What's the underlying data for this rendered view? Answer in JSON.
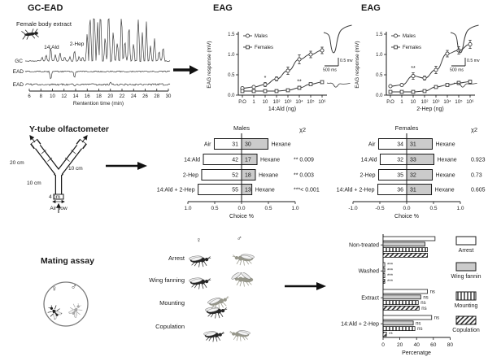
{
  "gc_ead": {
    "title": "GC-EAD",
    "sample_label": "Female body extract",
    "fly_icon": "fly-icon",
    "traces": [
      "GC",
      "EAD",
      "EAD"
    ],
    "peaks": [
      {
        "label": "14:Ald",
        "rt": 9.7
      },
      {
        "label": "2-Hep",
        "rt": 13.8
      }
    ],
    "x_ticks": [
      6,
      8,
      10,
      12,
      14,
      16,
      18,
      20,
      22,
      24,
      26,
      28,
      30
    ],
    "x_label": "Rentention time (min)"
  },
  "ytube": {
    "title": "Y-tube olfactometer",
    "labels": {
      "left_arm": "20 cm",
      "right_arm": "10 cm",
      "stem": "10 cm",
      "base": "4 cm",
      "airflow": "Air flow"
    }
  },
  "mating": {
    "title": "Mating assay",
    "female_symbol": "♀",
    "male_symbol": "♂",
    "behaviors": [
      "Arrest",
      "Wing fanning",
      "Mounting",
      "Copulation"
    ]
  },
  "icons": {
    "arrows": [
      "arrow-right-icon",
      "arrow-right-icon",
      "arrow-right-icon"
    ],
    "flies": [
      "fly-top-icon",
      "fly-side-icon"
    ]
  },
  "colors": {
    "ink": "#1a1a1a",
    "bar_gray": "#cbcbcb"
  },
  "chart_data": [
    {
      "id": "eag_14ald",
      "type": "line",
      "title": "EAG",
      "xlabel": "14:Ald (ng)",
      "ylabel": "EAG response (mV)",
      "ylim": [
        0,
        1.5
      ],
      "yticks": [
        "0.0",
        "0.5",
        "1.0",
        "1.5"
      ],
      "x_categories": [
        "P.O",
        "1",
        "10",
        "10²",
        "10³",
        "10⁴",
        "10⁵",
        "10⁶"
      ],
      "legend_position": "top-left",
      "series": [
        {
          "name": "Males",
          "marker": "circle",
          "values": [
            0.17,
            0.2,
            0.26,
            0.4,
            0.6,
            0.88,
            1.0,
            1.1
          ],
          "errors": [
            0.02,
            0.02,
            0.05,
            0.05,
            0.09,
            0.11,
            0.08,
            0.08
          ]
        },
        {
          "name": "Females",
          "marker": "square",
          "values": [
            0.1,
            0.1,
            0.1,
            0.1,
            0.12,
            0.18,
            0.27,
            0.32
          ],
          "errors": [
            0.01,
            0.01,
            0.01,
            0.01,
            0.02,
            0.04,
            0.03,
            0.03
          ]
        }
      ],
      "annotations": [
        {
          "series": 0,
          "x_index": 2,
          "text": "*"
        },
        {
          "series": 1,
          "x_index": 5,
          "text": "**"
        }
      ],
      "inset_scale_time": "500 ms",
      "inset_scale_volt": "0.5 mv"
    },
    {
      "id": "eag_2hep",
      "type": "line",
      "title": "EAG",
      "xlabel": "2-Hep (ng)",
      "ylabel": "EAG response (mV)",
      "ylim": [
        0,
        1.5
      ],
      "yticks": [
        "0.0",
        "0.5",
        "1.0",
        "1.5"
      ],
      "x_categories": [
        "P.O",
        "1",
        "10",
        "10²",
        "10³",
        "10⁴",
        "10⁵",
        "10⁶"
      ],
      "legend_position": "top-left",
      "series": [
        {
          "name": "Males",
          "marker": "circle",
          "values": [
            0.22,
            0.25,
            0.47,
            0.42,
            0.62,
            1.02,
            1.1,
            1.25
          ],
          "errors": [
            0.02,
            0.03,
            0.08,
            0.05,
            0.09,
            0.08,
            0.09,
            0.1
          ]
        },
        {
          "name": "Females",
          "marker": "square",
          "values": [
            0.08,
            0.08,
            0.08,
            0.1,
            0.2,
            0.25,
            0.3,
            0.33
          ],
          "errors": [
            0.01,
            0.01,
            0.01,
            0.02,
            0.03,
            0.03,
            0.04,
            0.04
          ]
        }
      ],
      "annotations": [
        {
          "series": 0,
          "x_index": 2,
          "text": "**"
        }
      ],
      "inset_scale_time": "500 ms",
      "inset_scale_volt": "0.5 mv"
    },
    {
      "id": "choice_males",
      "type": "bar",
      "title": "Males",
      "stat_header": "χ2",
      "xlabel": "Choice %",
      "x_ticks": [
        "1.0",
        "0.5",
        "0.0",
        "0.5",
        "1.0"
      ],
      "right_label": "Hexane",
      "rows": [
        {
          "stimulus": "Air",
          "left_count": 31,
          "right_count": 30,
          "chi2": ""
        },
        {
          "stimulus": "14:Ald",
          "left_count": 42,
          "right_count": 17,
          "chi2": "** 0.009"
        },
        {
          "stimulus": "2-Hep",
          "left_count": 52,
          "right_count": 18,
          "chi2": "** 0.003"
        },
        {
          "stimulus": "14:Ald + 2-Hep",
          "left_count": 55,
          "right_count": 13,
          "chi2": "***< 0.001"
        }
      ]
    },
    {
      "id": "choice_females",
      "type": "bar",
      "title": "Females",
      "stat_header": "χ2",
      "xlabel": "Choice %",
      "x_ticks": [
        "-1.0",
        "-0.5",
        "0.0",
        "0.5",
        "1.0"
      ],
      "right_label": "Hexane",
      "rows": [
        {
          "stimulus": "Air",
          "left_count": 34,
          "right_count": 31,
          "chi2": ""
        },
        {
          "stimulus": "14:Ald",
          "left_count": 32,
          "right_count": 33,
          "chi2": "0.923"
        },
        {
          "stimulus": "2-Hep",
          "left_count": 35,
          "right_count": 32,
          "chi2": "0.73"
        },
        {
          "stimulus": "14:Ald + 2-Hep",
          "left_count": 36,
          "right_count": 31,
          "chi2": "0.605"
        }
      ]
    },
    {
      "id": "mating_behavior",
      "type": "bar",
      "orientation": "horizontal",
      "xlabel": "Percenatge",
      "x_ticks": [
        0,
        20,
        40,
        60,
        80
      ],
      "xlim": [
        0,
        80
      ],
      "categories": [
        "Non-treated",
        "Washed",
        "Extract",
        "14:Ald + 2-Hep"
      ],
      "series": [
        {
          "name": "Arrest",
          "pattern": "open",
          "values": [
            62,
            2,
            53,
            58
          ],
          "sig": [
            "",
            "***",
            "ns",
            "ns"
          ]
        },
        {
          "name": "Wing fannin",
          "pattern": "gray",
          "values": [
            50,
            2,
            45,
            36
          ],
          "sig": [
            "",
            "***",
            "ns",
            "ns"
          ]
        },
        {
          "name": "Mounting",
          "pattern": "vstripe",
          "values": [
            53,
            2,
            42,
            38
          ],
          "sig": [
            "",
            "***",
            "ns",
            "ns"
          ]
        },
        {
          "name": "Copulation",
          "pattern": "dstripe",
          "values": [
            53,
            2,
            43,
            4
          ],
          "sig": [
            "",
            "***",
            "ns",
            "**"
          ]
        }
      ],
      "legend_position": "right"
    }
  ]
}
